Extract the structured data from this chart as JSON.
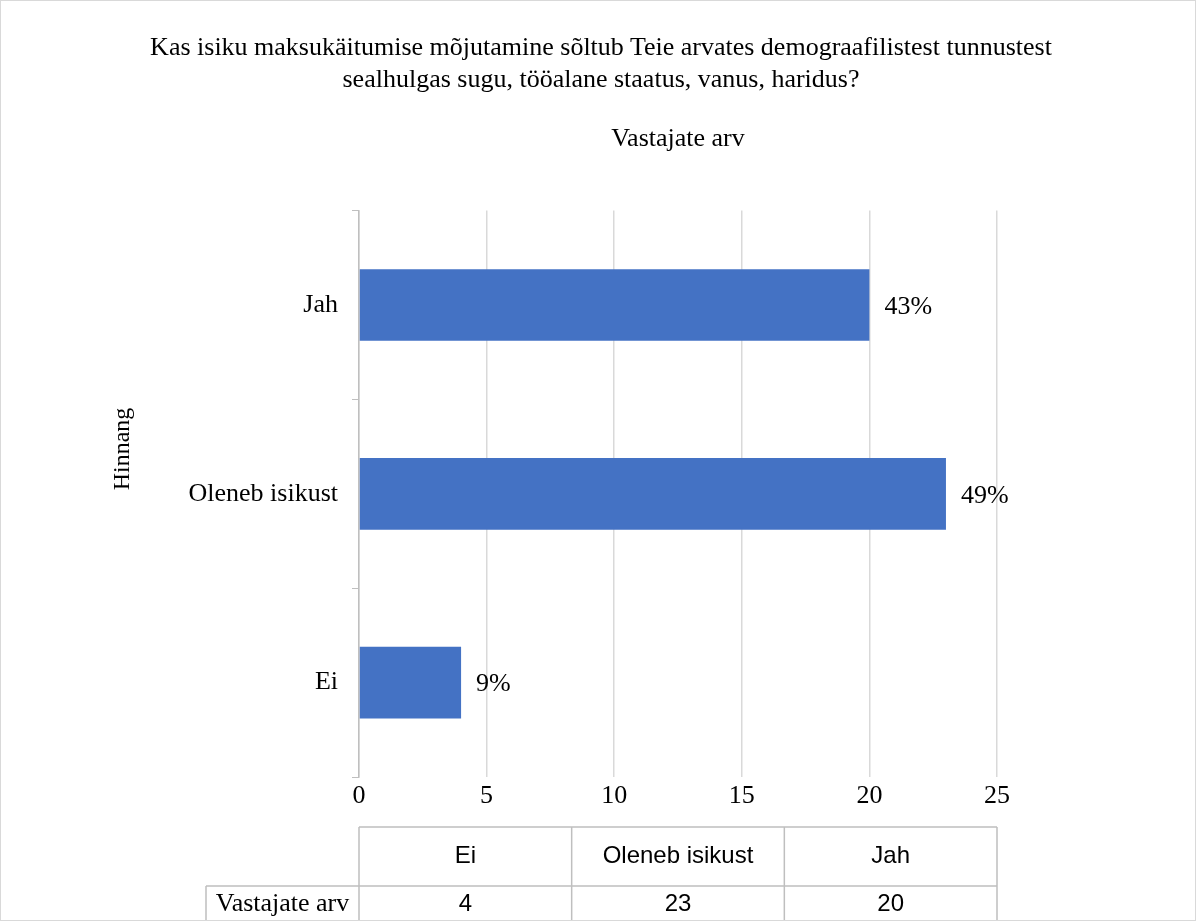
{
  "chart_data": {
    "type": "bar",
    "orientation": "horizontal",
    "title": "Kas isiku maksukäitumise mõjutamine sõltub Teie arvates demograafilistest tunnustest sealhulgas sugu, tööalane staatus, vanus, haridus?",
    "subtitle": "Vastajate arv",
    "ylabel": "Hinnang",
    "categories": [
      "Jah",
      "Oleneb isikust",
      "Ei"
    ],
    "series": [
      {
        "name": "Vastajate arv",
        "color": "#4472c4",
        "values": [
          20,
          23,
          4
        ]
      }
    ],
    "annotations": [
      {
        "text": "43%",
        "x": 20,
        "y": "Jah"
      },
      {
        "text": "49%",
        "x": 23,
        "y": "Oleneb isikust"
      },
      {
        "text": "9%",
        "x": 4,
        "y": "Ei"
      },
      "4",
      "23",
      "20"
    ],
    "xlim": [
      0,
      25
    ],
    "xticks": [
      0,
      5,
      10,
      15,
      20,
      25
    ],
    "grid": "x"
  }
}
